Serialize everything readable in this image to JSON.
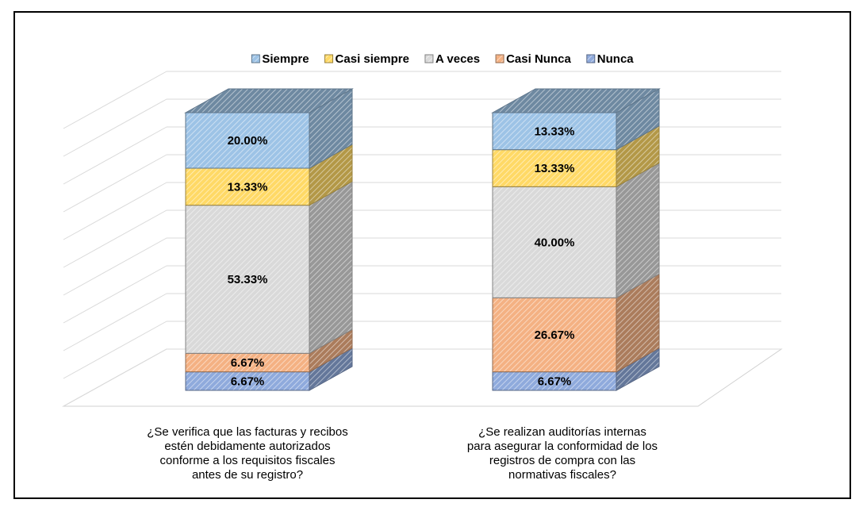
{
  "chart_data": {
    "type": "bar3d_stacked",
    "categories": [
      "¿Se verifica que las facturas y recibos\nestén debidamente  autorizados\nconforme a los requisitos fiscales\nantes de su registro?",
      "¿Se realizan auditorías internas\npara asegurar la conformidad de los\nregistros de compra con las\nnormativas fiscales?"
    ],
    "series": [
      {
        "name": "Nunca",
        "color": "#8faadc",
        "values": [
          6.67,
          6.67
        ],
        "value_labels": [
          "6.67%",
          "6.67%"
        ]
      },
      {
        "name": "Casi Nunca",
        "color": "#f4b183",
        "values": [
          6.67,
          26.67
        ],
        "value_labels": [
          "6.67%",
          "26.67%"
        ]
      },
      {
        "name": "A veces",
        "color": "#d9d9d9",
        "values": [
          53.33,
          40.0
        ],
        "value_labels": [
          "53.33%",
          "40.00%"
        ]
      },
      {
        "name": "Casi siempre",
        "color": "#ffd966",
        "values": [
          13.33,
          13.33
        ],
        "value_labels": [
          "13.33%",
          "13.33%"
        ]
      },
      {
        "name": "Siempre",
        "color": "#9dc3e6",
        "values": [
          20.0,
          13.33
        ],
        "value_labels": [
          "20.00%",
          "13.33%"
        ]
      }
    ],
    "ylim": [
      0,
      100
    ],
    "yticks": [
      0,
      10,
      20,
      30,
      40,
      50,
      60,
      70,
      80,
      90,
      100
    ],
    "grid": true,
    "legend": "top"
  }
}
